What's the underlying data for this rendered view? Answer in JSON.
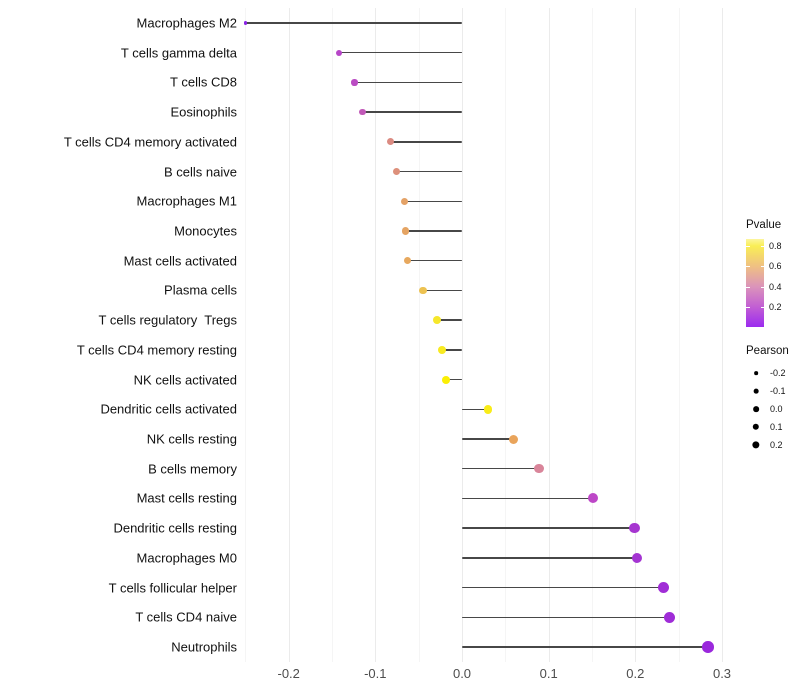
{
  "chart_data": {
    "type": "scatter",
    "variant": "lollipop",
    "title": "",
    "xlabel": "",
    "ylabel": "",
    "categories": [
      "Macrophages M2",
      "T cells gamma delta",
      "T cells CD8",
      "Eosinophils",
      "T cells CD4 memory activated",
      "B cells naive",
      "Macrophages M1",
      "Monocytes",
      "Mast cells activated",
      "Plasma cells",
      "T cells regulatory  Tregs",
      "T cells CD4 memory resting",
      "NK cells activated",
      "Dendritic cells activated",
      "NK cells resting",
      "B cells memory",
      "Mast cells resting",
      "Dendritic cells resting",
      "Macrophages M0",
      "T cells follicular helper",
      "T cells CD4 naive",
      "Neutrophils"
    ],
    "series": [
      {
        "name": "Pearson",
        "values": [
          -0.25,
          -0.142,
          -0.124,
          -0.115,
          -0.083,
          -0.075,
          -0.066,
          -0.065,
          -0.063,
          -0.045,
          -0.029,
          -0.023,
          -0.018,
          0.03,
          0.059,
          0.089,
          0.151,
          0.199,
          0.202,
          0.232,
          0.239,
          0.284
        ]
      }
    ],
    "point_colors": [
      "#8b24e5",
      "#b746c8",
      "#ba4cc3",
      "#c159b8",
      "#db8b82",
      "#dd907b",
      "#e4a267",
      "#e5a463",
      "#e7a85e",
      "#edc251",
      "#f6e72b",
      "#f8ea21",
      "#fbef04",
      "#f9ec18",
      "#e9a45b",
      "#d9859a",
      "#bd47c7",
      "#a636d0",
      "#a434d2",
      "#a02dd6",
      "#9f2cd7",
      "#9a28dc"
    ],
    "stem_color": "#474747",
    "xlim": [
      -0.2504,
      0.3173
    ],
    "x_ticks": [
      {
        "label": "-0.2",
        "value": -0.2
      },
      {
        "label": "-0.1",
        "value": -0.1
      },
      {
        "label": "0.0",
        "value": 0.0
      },
      {
        "label": "0.1",
        "value": 0.1
      },
      {
        "label": "0.2",
        "value": 0.2
      },
      {
        "label": "0.3",
        "value": 0.3
      }
    ],
    "grid": {
      "major_step": 0.1,
      "minor_step": 0.05,
      "major_color": "#ebebeb",
      "minor_color": "#f5f5f5"
    },
    "legend_position": "right",
    "legends": {
      "pvalue": {
        "title": "Pvalue",
        "ticks": [
          {
            "label": "0.8",
            "pct": 8
          },
          {
            "label": "0.6",
            "pct": 31
          },
          {
            "label": "0.4",
            "pct": 54
          },
          {
            "label": "0.2",
            "pct": 77
          }
        ],
        "gradient_stops": [
          {
            "color": "#fcf69e",
            "pct": 0
          },
          {
            "color": "#f9ee55",
            "pct": 8
          },
          {
            "color": "#efc083",
            "pct": 31
          },
          {
            "color": "#db94ba",
            "pct": 54
          },
          {
            "color": "#c25fd3",
            "pct": 77
          },
          {
            "color": "#9b2bef",
            "pct": 100
          }
        ]
      },
      "pearson": {
        "title": "Pearson",
        "items": [
          {
            "label": "-0.2",
            "value": -0.2
          },
          {
            "label": "-0.1",
            "value": -0.1
          },
          {
            "label": "0.0",
            "value": 0.0
          },
          {
            "label": "0.1",
            "value": 0.1
          },
          {
            "label": "0.2",
            "value": 0.2
          }
        ],
        "dot_color": "#000000"
      }
    }
  }
}
